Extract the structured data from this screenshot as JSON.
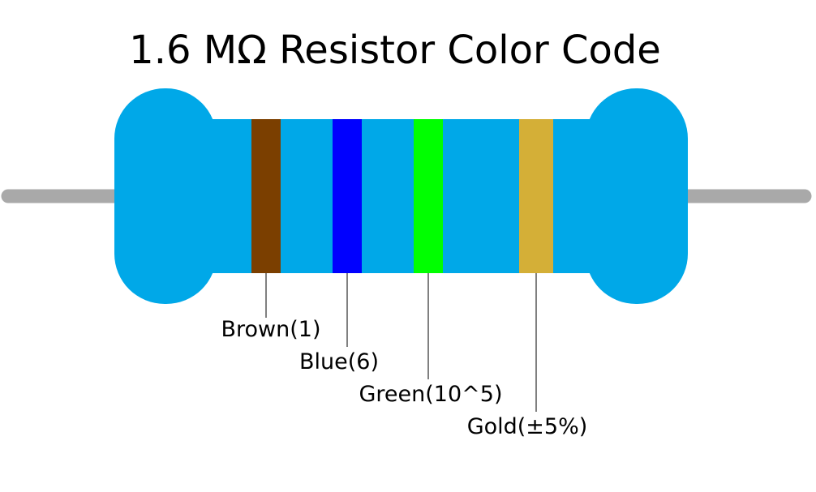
{
  "title": "1.6 MΩ Resistor Color Code",
  "bands": [
    {
      "label": "Brown(1)",
      "color": "#7b3f00"
    },
    {
      "label": "Blue(6)",
      "color": "#0000ff"
    },
    {
      "label": "Green(10^5)",
      "color": "#00ff00"
    },
    {
      "label": "Gold(±5%)",
      "color": "#d4af37"
    }
  ]
}
